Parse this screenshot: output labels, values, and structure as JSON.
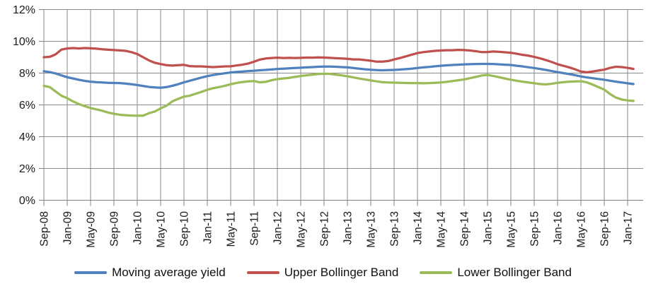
{
  "chart_data": {
    "type": "line",
    "title": "",
    "grid": true,
    "legend_position": "bottom",
    "x_frequency": "monthly",
    "x_start": "Sep-08",
    "x_end": "Feb-17",
    "x_tick_labels": [
      "Sep-08",
      "Jan-09",
      "May-09",
      "Sep-09",
      "Jan-10",
      "May-10",
      "Sep-10",
      "Jan-11",
      "May-11",
      "Sep-11",
      "Jan-12",
      "May-12",
      "Sep-12",
      "Jan-13",
      "May-13",
      "Sep-13",
      "Jan-14",
      "May-14",
      "Sep-14",
      "Jan-15",
      "May-15",
      "Sep-15",
      "Jan-16",
      "May-16",
      "Sep-16",
      "Jan-17"
    ],
    "y_axis": {
      "min": 0,
      "max": 12,
      "step": 2,
      "format": "percent"
    },
    "y_tick_labels": [
      "0%",
      "2%",
      "4%",
      "6%",
      "8%",
      "10%",
      "12%"
    ],
    "axis_color": "#808080",
    "grid_color": "#8a8a8a",
    "series": [
      {
        "name": "Moving average yield",
        "color": "#4F81BD",
        "values": [
          8.12,
          8.06,
          7.98,
          7.86,
          7.74,
          7.66,
          7.58,
          7.51,
          7.46,
          7.43,
          7.41,
          7.39,
          7.38,
          7.37,
          7.34,
          7.3,
          7.25,
          7.19,
          7.13,
          7.1,
          7.08,
          7.12,
          7.2,
          7.3,
          7.42,
          7.52,
          7.62,
          7.72,
          7.81,
          7.88,
          7.94,
          7.99,
          8.04,
          8.07,
          8.1,
          8.13,
          8.15,
          8.18,
          8.2,
          8.23,
          8.26,
          8.28,
          8.3,
          8.32,
          8.34,
          8.36,
          8.38,
          8.4,
          8.41,
          8.41,
          8.4,
          8.38,
          8.36,
          8.32,
          8.28,
          8.24,
          8.21,
          8.19,
          8.18,
          8.19,
          8.2,
          8.22,
          8.25,
          8.28,
          8.32,
          8.36,
          8.39,
          8.43,
          8.46,
          8.49,
          8.51,
          8.53,
          8.55,
          8.56,
          8.57,
          8.58,
          8.58,
          8.57,
          8.55,
          8.53,
          8.51,
          8.46,
          8.42,
          8.37,
          8.32,
          8.26,
          8.2,
          8.13,
          8.06,
          8.0,
          7.94,
          7.87,
          7.79,
          7.73,
          7.68,
          7.63,
          7.58,
          7.52,
          7.46,
          7.41,
          7.36,
          7.31
        ]
      },
      {
        "name": "Upper Bollinger Band",
        "color": "#C0504D",
        "values": [
          9.0,
          9.02,
          9.18,
          9.48,
          9.55,
          9.58,
          9.55,
          9.58,
          9.56,
          9.54,
          9.5,
          9.47,
          9.45,
          9.43,
          9.4,
          9.32,
          9.2,
          9.0,
          8.8,
          8.65,
          8.57,
          8.5,
          8.47,
          8.5,
          8.52,
          8.44,
          8.42,
          8.42,
          8.4,
          8.38,
          8.4,
          8.42,
          8.43,
          8.48,
          8.53,
          8.6,
          8.72,
          8.85,
          8.92,
          8.95,
          8.97,
          8.95,
          8.96,
          8.95,
          8.96,
          8.98,
          8.97,
          8.99,
          8.98,
          8.96,
          8.94,
          8.92,
          8.9,
          8.86,
          8.86,
          8.82,
          8.78,
          8.72,
          8.72,
          8.76,
          8.86,
          8.95,
          9.05,
          9.16,
          9.26,
          9.32,
          9.36,
          9.4,
          9.42,
          9.44,
          9.44,
          9.46,
          9.45,
          9.42,
          9.38,
          9.32,
          9.33,
          9.36,
          9.34,
          9.31,
          9.28,
          9.22,
          9.15,
          9.1,
          9.02,
          8.93,
          8.82,
          8.7,
          8.56,
          8.46,
          8.36,
          8.24,
          8.1,
          8.05,
          8.1,
          8.16,
          8.22,
          8.33,
          8.4,
          8.38,
          8.33,
          8.26
        ]
      },
      {
        "name": "Lower Bollinger Band",
        "color": "#9BBB59",
        "values": [
          7.2,
          7.12,
          6.85,
          6.58,
          6.42,
          6.22,
          6.05,
          5.92,
          5.8,
          5.72,
          5.63,
          5.52,
          5.44,
          5.38,
          5.35,
          5.33,
          5.32,
          5.32,
          5.48,
          5.58,
          5.78,
          5.95,
          6.22,
          6.38,
          6.52,
          6.58,
          6.7,
          6.82,
          6.95,
          7.05,
          7.12,
          7.2,
          7.3,
          7.38,
          7.44,
          7.48,
          7.5,
          7.42,
          7.45,
          7.55,
          7.62,
          7.66,
          7.7,
          7.76,
          7.82,
          7.86,
          7.9,
          7.94,
          7.96,
          7.95,
          7.9,
          7.86,
          7.8,
          7.73,
          7.66,
          7.6,
          7.54,
          7.48,
          7.43,
          7.41,
          7.4,
          7.39,
          7.38,
          7.37,
          7.37,
          7.36,
          7.37,
          7.39,
          7.41,
          7.45,
          7.5,
          7.55,
          7.6,
          7.68,
          7.76,
          7.85,
          7.89,
          7.82,
          7.74,
          7.66,
          7.58,
          7.52,
          7.46,
          7.41,
          7.36,
          7.31,
          7.29,
          7.33,
          7.39,
          7.43,
          7.46,
          7.48,
          7.49,
          7.42,
          7.28,
          7.12,
          6.96,
          6.68,
          6.46,
          6.34,
          6.28,
          6.25
        ]
      }
    ]
  }
}
